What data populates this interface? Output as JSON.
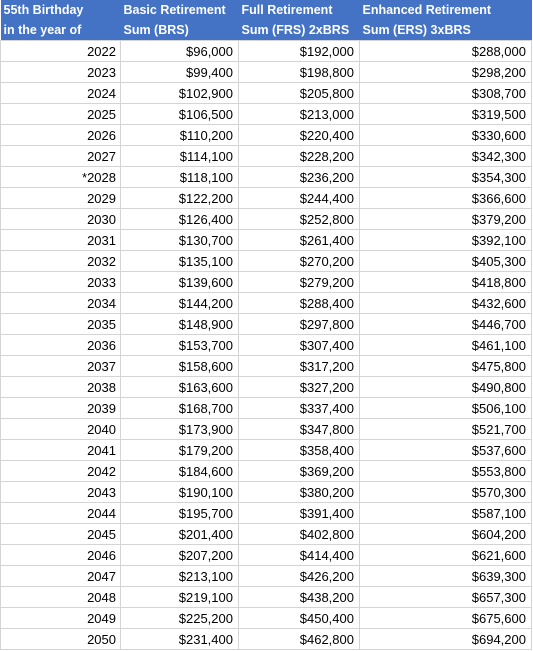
{
  "headers": [
    {
      "line1": "55th Birthday",
      "line2": "in the year of"
    },
    {
      "line1": "Basic Retirement",
      "line2": "Sum (BRS)"
    },
    {
      "line1": "Full Retirement",
      "line2": "Sum (FRS) 2xBRS"
    },
    {
      "line1": "Enhanced Retirement",
      "line2": "Sum (ERS) 3xBRS"
    }
  ],
  "rows": [
    [
      "2022",
      "$96,000",
      "$192,000",
      "$288,000"
    ],
    [
      "2023",
      "$99,400",
      "$198,800",
      "$298,200"
    ],
    [
      "2024",
      "$102,900",
      "$205,800",
      "$308,700"
    ],
    [
      "2025",
      "$106,500",
      "$213,000",
      "$319,500"
    ],
    [
      "2026",
      "$110,200",
      "$220,400",
      "$330,600"
    ],
    [
      "2027",
      "$114,100",
      "$228,200",
      "$342,300"
    ],
    [
      "*2028",
      "$118,100",
      "$236,200",
      "$354,300"
    ],
    [
      "2029",
      "$122,200",
      "$244,400",
      "$366,600"
    ],
    [
      "2030",
      "$126,400",
      "$252,800",
      "$379,200"
    ],
    [
      "2031",
      "$130,700",
      "$261,400",
      "$392,100"
    ],
    [
      "2032",
      "$135,100",
      "$270,200",
      "$405,300"
    ],
    [
      "2033",
      "$139,600",
      "$279,200",
      "$418,800"
    ],
    [
      "2034",
      "$144,200",
      "$288,400",
      "$432,600"
    ],
    [
      "2035",
      "$148,900",
      "$297,800",
      "$446,700"
    ],
    [
      "2036",
      "$153,700",
      "$307,400",
      "$461,100"
    ],
    [
      "2037",
      "$158,600",
      "$317,200",
      "$475,800"
    ],
    [
      "2038",
      "$163,600",
      "$327,200",
      "$490,800"
    ],
    [
      "2039",
      "$168,700",
      "$337,400",
      "$506,100"
    ],
    [
      "2040",
      "$173,900",
      "$347,800",
      "$521,700"
    ],
    [
      "2041",
      "$179,200",
      "$358,400",
      "$537,600"
    ],
    [
      "2042",
      "$184,600",
      "$369,200",
      "$553,800"
    ],
    [
      "2043",
      "$190,100",
      "$380,200",
      "$570,300"
    ],
    [
      "2044",
      "$195,700",
      "$391,400",
      "$587,100"
    ],
    [
      "2045",
      "$201,400",
      "$402,800",
      "$604,200"
    ],
    [
      "2046",
      "$207,200",
      "$414,400",
      "$621,600"
    ],
    [
      "2047",
      "$213,100",
      "$426,200",
      "$639,300"
    ],
    [
      "2048",
      "$219,100",
      "$438,200",
      "$657,300"
    ],
    [
      "2049",
      "$225,200",
      "$450,400",
      "$675,600"
    ],
    [
      "2050",
      "$231,400",
      "$462,800",
      "$694,200"
    ]
  ],
  "colors": {
    "header_bg": "#4472C4",
    "header_text": "#FFFFFF",
    "grid": "#D4D4D4"
  }
}
